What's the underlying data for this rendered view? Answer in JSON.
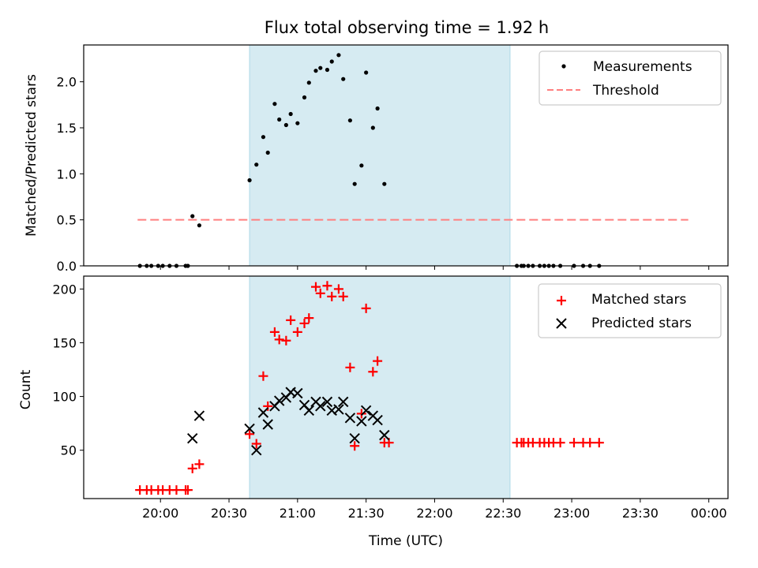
{
  "chart_data": {
    "title": "Flux total observing time = 1.92 h",
    "xlabel": "Time (UTC)",
    "x_ticks": [
      "20:00",
      "20:30",
      "21:00",
      "21:30",
      "22:00",
      "22:30",
      "23:00",
      "23:30",
      "00:00"
    ],
    "shaded_interval": {
      "start": "20:39",
      "end": "22:33",
      "color": "#add8e6"
    },
    "panels": [
      {
        "type": "scatter",
        "ylabel": "Matched/Predicted stars",
        "ylim": [
          0,
          2.4
        ],
        "y_ticks": [
          "0.0",
          "0.5",
          "1.0",
          "1.5",
          "2.0"
        ],
        "legend_position": "upper right",
        "series": [
          {
            "name": "Measurements",
            "marker": "dot",
            "color": "#000000",
            "points": [
              [
                "19:51",
                0
              ],
              [
                "19:54",
                0
              ],
              [
                "19:56",
                0
              ],
              [
                "19:59",
                0
              ],
              [
                "20:01",
                0
              ],
              [
                "20:04",
                0
              ],
              [
                "20:07",
                0
              ],
              [
                "20:11",
                0
              ],
              [
                "20:12",
                0
              ],
              [
                "20:14",
                0.54
              ],
              [
                "20:17",
                0.44
              ],
              [
                "20:39",
                0.93
              ],
              [
                "20:42",
                1.1
              ],
              [
                "20:45",
                1.4
              ],
              [
                "20:47",
                1.23
              ],
              [
                "20:50",
                1.76
              ],
              [
                "20:52",
                1.59
              ],
              [
                "20:55",
                1.53
              ],
              [
                "20:57",
                1.65
              ],
              [
                "21:00",
                1.55
              ],
              [
                "21:03",
                1.83
              ],
              [
                "21:05",
                1.99
              ],
              [
                "21:08",
                2.12
              ],
              [
                "21:10",
                2.15
              ],
              [
                "21:13",
                2.13
              ],
              [
                "21:15",
                2.22
              ],
              [
                "21:18",
                2.29
              ],
              [
                "21:20",
                2.03
              ],
              [
                "21:23",
                1.58
              ],
              [
                "21:25",
                0.89
              ],
              [
                "21:28",
                1.09
              ],
              [
                "21:30",
                2.1
              ],
              [
                "21:33",
                1.5
              ],
              [
                "21:35",
                1.71
              ],
              [
                "21:38",
                0.89
              ],
              [
                "22:36",
                0
              ],
              [
                "22:38",
                0
              ],
              [
                "22:39",
                0
              ],
              [
                "22:41",
                0
              ],
              [
                "22:43",
                0
              ],
              [
                "22:46",
                0
              ],
              [
                "22:48",
                0
              ],
              [
                "22:50",
                0
              ],
              [
                "22:52",
                0
              ],
              [
                "22:55",
                0
              ],
              [
                "23:01",
                0
              ],
              [
                "23:05",
                0
              ],
              [
                "23:08",
                0
              ],
              [
                "23:12",
                0
              ]
            ]
          },
          {
            "name": "Threshold",
            "type": "line",
            "style": "dashed",
            "color": "#ff7f7f",
            "points": [
              [
                "19:50",
                0.5
              ],
              [
                "23:51",
                0.5
              ]
            ]
          }
        ]
      },
      {
        "type": "scatter",
        "ylabel": "Count",
        "ylim": [
          5,
          212
        ],
        "y_ticks": [
          "50",
          "100",
          "150",
          "200"
        ],
        "legend_position": "upper right",
        "series": [
          {
            "name": "Matched stars",
            "marker": "plus",
            "color": "#ff0000",
            "points": [
              [
                "19:51",
                13
              ],
              [
                "19:54",
                13
              ],
              [
                "19:56",
                13
              ],
              [
                "19:59",
                13
              ],
              [
                "20:01",
                13
              ],
              [
                "20:04",
                13
              ],
              [
                "20:07",
                13
              ],
              [
                "20:11",
                13
              ],
              [
                "20:12",
                13
              ],
              [
                "20:14",
                33
              ],
              [
                "20:17",
                37
              ],
              [
                "20:39",
                65
              ],
              [
                "20:42",
                56
              ],
              [
                "20:45",
                119
              ],
              [
                "20:47",
                91
              ],
              [
                "20:50",
                160
              ],
              [
                "20:52",
                153
              ],
              [
                "20:55",
                152
              ],
              [
                "20:57",
                171
              ],
              [
                "21:00",
                160
              ],
              [
                "21:03",
                168
              ],
              [
                "21:05",
                173
              ],
              [
                "21:08",
                202
              ],
              [
                "21:10",
                196
              ],
              [
                "21:13",
                203
              ],
              [
                "21:15",
                193
              ],
              [
                "21:18",
                200
              ],
              [
                "21:20",
                193
              ],
              [
                "21:23",
                127
              ],
              [
                "21:25",
                54
              ],
              [
                "21:28",
                84
              ],
              [
                "21:30",
                182
              ],
              [
                "21:33",
                123
              ],
              [
                "21:35",
                133
              ],
              [
                "21:38",
                57
              ],
              [
                "21:40",
                57
              ],
              [
                "22:36",
                57
              ],
              [
                "22:38",
                57
              ],
              [
                "22:39",
                57
              ],
              [
                "22:41",
                57
              ],
              [
                "22:43",
                57
              ],
              [
                "22:46",
                57
              ],
              [
                "22:48",
                57
              ],
              [
                "22:50",
                57
              ],
              [
                "22:52",
                57
              ],
              [
                "22:55",
                57
              ],
              [
                "23:01",
                57
              ],
              [
                "23:05",
                57
              ],
              [
                "23:08",
                57
              ],
              [
                "23:12",
                57
              ]
            ]
          },
          {
            "name": "Predicted stars",
            "marker": "x",
            "color": "#000000",
            "points": [
              [
                "20:14",
                61
              ],
              [
                "20:17",
                82
              ],
              [
                "20:39",
                70
              ],
              [
                "20:42",
                50
              ],
              [
                "20:45",
                85
              ],
              [
                "20:47",
                74
              ],
              [
                "20:50",
                91
              ],
              [
                "20:52",
                96
              ],
              [
                "20:55",
                99
              ],
              [
                "20:57",
                104
              ],
              [
                "21:00",
                103
              ],
              [
                "21:03",
                92
              ],
              [
                "21:05",
                87
              ],
              [
                "21:08",
                95
              ],
              [
                "21:10",
                91
              ],
              [
                "21:13",
                95
              ],
              [
                "21:15",
                87
              ],
              [
                "21:18",
                88
              ],
              [
                "21:20",
                95
              ],
              [
                "21:23",
                80
              ],
              [
                "21:25",
                61
              ],
              [
                "21:28",
                77
              ],
              [
                "21:30",
                87
              ],
              [
                "21:33",
                82
              ],
              [
                "21:35",
                78
              ],
              [
                "21:38",
                64
              ]
            ]
          }
        ]
      }
    ]
  }
}
